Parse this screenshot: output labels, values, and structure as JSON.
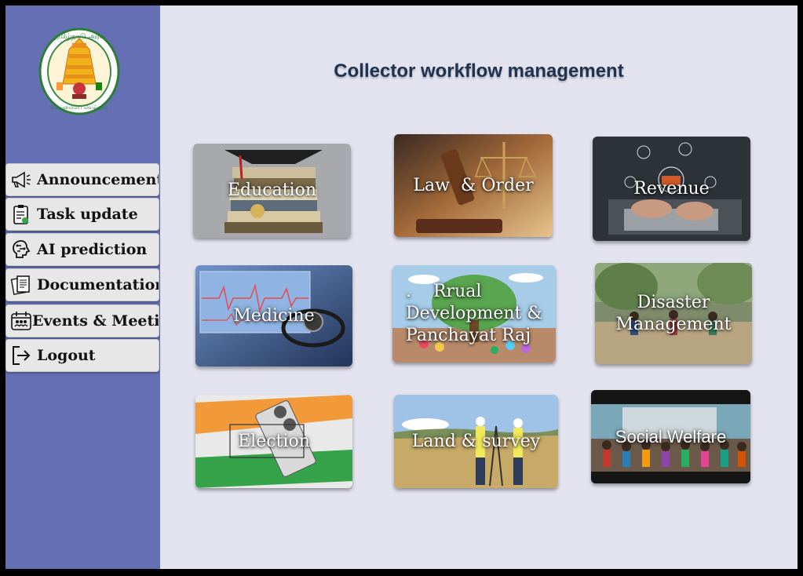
{
  "app": {
    "title": "Collector workflow management",
    "emblem_name": "tamil-nadu-emblem"
  },
  "sidebar": {
    "items": [
      {
        "label": "Announcement",
        "icon": "megaphone-icon"
      },
      {
        "label": "Task update",
        "icon": "clipboard-icon"
      },
      {
        "label": "AI prediction",
        "icon": "brain-icon"
      },
      {
        "label": "Documentation",
        "icon": "documents-icon"
      },
      {
        "label": "Events & Meeting",
        "icon": "calendar-people-icon"
      },
      {
        "label": "Logout",
        "icon": "logout-icon"
      }
    ]
  },
  "departments": [
    {
      "label": "Education"
    },
    {
      "label": "Law  & Order"
    },
    {
      "label": "Revenue"
    },
    {
      "label": "Medicine"
    },
    {
      "label_lines": [
        ".    Rrual",
        "Development &",
        "Panchayat Raj"
      ]
    },
    {
      "label_lines": [
        "Disaster",
        "Management"
      ]
    },
    {
      "label": "Election"
    },
    {
      "label": "Land & survey"
    },
    {
      "label": "Social Welfare"
    }
  ],
  "colors": {
    "sidebar": "#6470b3",
    "main_bg": "#e2e3ef",
    "title": "#1f3350",
    "nav_bg": "#e7e7e7"
  }
}
